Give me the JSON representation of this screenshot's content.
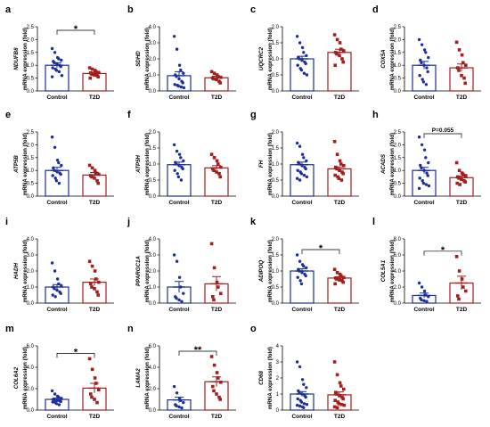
{
  "colors": {
    "control": "#1c2f9a",
    "t2d": "#a41e1e",
    "axis": "#000000"
  },
  "chart_data": [
    {
      "type": "scatter",
      "panel": "a",
      "gene": "NDUFB8",
      "ylabel_suffix": " mRNA expression (fold)",
      "ylim": [
        0,
        2.5
      ],
      "yticks": [
        "0.0",
        "0.5",
        "1.0",
        "1.5",
        "2.0",
        "2.5"
      ],
      "categories": [
        "Control",
        "T2D"
      ],
      "series": [
        {
          "name": "Control",
          "mean": 1.0,
          "sem": 0.1,
          "values": [
            1.65,
            1.5,
            1.3,
            1.25,
            1.2,
            1.15,
            1.1,
            1.05,
            1.0,
            0.95,
            0.9,
            0.85,
            0.8,
            0.75,
            0.6,
            0.55
          ]
        },
        {
          "name": "T2D",
          "mean": 0.68,
          "sem": 0.05,
          "values": [
            0.9,
            0.85,
            0.8,
            0.75,
            0.72,
            0.7,
            0.65,
            0.62,
            0.6,
            0.55,
            0.5
          ]
        }
      ],
      "annotation": "*"
    },
    {
      "type": "scatter",
      "panel": "b",
      "gene": "SDHD",
      "ylabel_suffix": " mRNA expression (fold)",
      "ylim": [
        0,
        4.0
      ],
      "yticks": [
        "0.0",
        "1.0",
        "2.0",
        "3.0",
        "4.0"
      ],
      "categories": [
        "Control",
        "T2D"
      ],
      "series": [
        {
          "name": "Control",
          "mean": 0.95,
          "sem": 0.25,
          "values": [
            3.4,
            2.6,
            1.6,
            1.3,
            1.1,
            1.0,
            0.9,
            0.75,
            0.6,
            0.5,
            0.4,
            0.35,
            0.3,
            0.25,
            0.2
          ]
        },
        {
          "name": "T2D",
          "mean": 0.82,
          "sem": 0.1,
          "values": [
            1.2,
            1.1,
            1.0,
            0.9,
            0.85,
            0.8,
            0.75,
            0.7,
            0.6,
            0.5
          ]
        }
      ],
      "annotation": ""
    },
    {
      "type": "scatter",
      "panel": "c",
      "gene": "UQCRC2",
      "ylabel_suffix": " mRNA expression (fold)",
      "ylim": [
        0,
        2.0
      ],
      "yticks": [
        "0.0",
        "0.5",
        "1.0",
        "1.5",
        "2.0"
      ],
      "categories": [
        "Control",
        "T2D"
      ],
      "series": [
        {
          "name": "Control",
          "mean": 1.0,
          "sem": 0.08,
          "values": [
            1.7,
            1.5,
            1.35,
            1.2,
            1.1,
            1.05,
            1.0,
            0.95,
            0.9,
            0.85,
            0.8,
            0.7,
            0.65,
            0.55,
            0.5
          ]
        },
        {
          "name": "T2D",
          "mean": 1.2,
          "sem": 0.1,
          "values": [
            1.75,
            1.6,
            1.5,
            1.3,
            1.25,
            1.2,
            1.15,
            1.1,
            1.0,
            0.9,
            0.8
          ]
        }
      ],
      "annotation": ""
    },
    {
      "type": "scatter",
      "panel": "d",
      "gene": "COX5A",
      "ylabel_suffix": " mRNA expression (fold)",
      "ylim": [
        0,
        2.5
      ],
      "yticks": [
        "0.0",
        "0.5",
        "1.0",
        "1.5",
        "2.0",
        "2.5"
      ],
      "categories": [
        "Control",
        "T2D"
      ],
      "series": [
        {
          "name": "Control",
          "mean": 1.0,
          "sem": 0.15,
          "values": [
            2.0,
            1.8,
            1.6,
            1.5,
            1.3,
            1.2,
            1.1,
            1.0,
            0.9,
            0.75,
            0.6,
            0.45,
            0.35,
            0.25
          ]
        },
        {
          "name": "T2D",
          "mean": 0.9,
          "sem": 0.15,
          "values": [
            1.9,
            1.6,
            1.4,
            1.1,
            1.0,
            0.9,
            0.8,
            0.6,
            0.5,
            0.3
          ]
        }
      ],
      "annotation": ""
    },
    {
      "type": "scatter",
      "panel": "e",
      "gene": "ATP5B",
      "ylabel_suffix": " mRNA expression (fold)",
      "ylim": [
        0,
        2.5
      ],
      "yticks": [
        "0.0",
        "0.5",
        "1.0",
        "1.5",
        "2.0",
        "2.5"
      ],
      "categories": [
        "Control",
        "T2D"
      ],
      "series": [
        {
          "name": "Control",
          "mean": 1.0,
          "sem": 0.12,
          "values": [
            2.3,
            1.9,
            1.4,
            1.3,
            1.2,
            1.1,
            1.0,
            0.95,
            0.9,
            0.85,
            0.8,
            0.7,
            0.6,
            0.5
          ]
        },
        {
          "name": "T2D",
          "mean": 0.82,
          "sem": 0.1,
          "values": [
            1.2,
            1.1,
            1.0,
            0.9,
            0.85,
            0.8,
            0.75,
            0.7,
            0.6,
            0.5
          ]
        }
      ],
      "annotation": ""
    },
    {
      "type": "scatter",
      "panel": "f",
      "gene": "ATP5H",
      "ylabel_suffix": " mRNA expression (fold)",
      "ylim": [
        0,
        2.0
      ],
      "yticks": [
        "0.0",
        "0.5",
        "1.0",
        "1.5",
        "2.0"
      ],
      "categories": [
        "Control",
        "T2D"
      ],
      "series": [
        {
          "name": "Control",
          "mean": 0.98,
          "sem": 0.08,
          "values": [
            1.6,
            1.4,
            1.3,
            1.2,
            1.1,
            1.05,
            1.0,
            0.95,
            0.9,
            0.85,
            0.8,
            0.7,
            0.6,
            0.5
          ]
        },
        {
          "name": "T2D",
          "mean": 0.88,
          "sem": 0.07,
          "values": [
            1.3,
            1.2,
            1.1,
            1.0,
            0.9,
            0.85,
            0.8,
            0.75,
            0.7,
            0.6
          ]
        }
      ],
      "annotation": ""
    },
    {
      "type": "scatter",
      "panel": "g",
      "gene": "FH",
      "ylabel_suffix": " mRNA expression (fold)",
      "ylim": [
        0,
        2.0
      ],
      "yticks": [
        "0.0",
        "0.5",
        "1.0",
        "1.5",
        "2.0"
      ],
      "categories": [
        "Control",
        "T2D"
      ],
      "series": [
        {
          "name": "Control",
          "mean": 0.98,
          "sem": 0.08,
          "values": [
            1.65,
            1.55,
            1.3,
            1.2,
            1.1,
            1.05,
            1.0,
            0.95,
            0.9,
            0.85,
            0.8,
            0.75,
            0.7,
            0.65,
            0.6,
            0.55,
            0.5
          ]
        },
        {
          "name": "T2D",
          "mean": 0.85,
          "sem": 0.06,
          "values": [
            1.7,
            1.3,
            1.1,
            1.0,
            0.95,
            0.9,
            0.85,
            0.8,
            0.75,
            0.7,
            0.65,
            0.6,
            0.55,
            0.5
          ]
        }
      ],
      "annotation": ""
    },
    {
      "type": "scatter",
      "panel": "h",
      "gene": "ACADS",
      "ylabel_suffix": " mRNA expression (fold)",
      "ylim": [
        0,
        2.5
      ],
      "yticks": [
        "0.0",
        "0.5",
        "1.0",
        "1.5",
        "2.0",
        "2.5"
      ],
      "categories": [
        "Control",
        "T2D"
      ],
      "series": [
        {
          "name": "Control",
          "mean": 1.0,
          "sem": 0.12,
          "values": [
            2.3,
            2.0,
            1.8,
            1.5,
            1.3,
            1.2,
            1.1,
            1.0,
            0.9,
            0.8,
            0.7,
            0.6,
            0.5,
            0.45,
            0.4,
            0.3
          ]
        },
        {
          "name": "T2D",
          "mean": 0.72,
          "sem": 0.06,
          "values": [
            1.3,
            1.0,
            0.9,
            0.85,
            0.8,
            0.75,
            0.7,
            0.65,
            0.6,
            0.55,
            0.5,
            0.45
          ]
        }
      ],
      "annotation": "P=0.055"
    },
    {
      "type": "scatter",
      "panel": "i",
      "gene": "HADH",
      "ylabel_suffix": " mRNA expression (fold)",
      "ylim": [
        0,
        4.0
      ],
      "yticks": [
        "0.0",
        "1.0",
        "2.0",
        "3.0",
        "4.0"
      ],
      "categories": [
        "Control",
        "T2D"
      ],
      "series": [
        {
          "name": "Control",
          "mean": 1.0,
          "sem": 0.15,
          "values": [
            2.5,
            2.0,
            1.5,
            1.2,
            1.1,
            1.0,
            0.9,
            0.8,
            0.7,
            0.6,
            0.5,
            0.4
          ]
        },
        {
          "name": "T2D",
          "mean": 1.3,
          "sem": 0.2,
          "values": [
            2.6,
            2.3,
            2.0,
            1.5,
            1.3,
            1.2,
            1.0,
            0.9,
            0.7,
            0.5
          ]
        }
      ],
      "annotation": ""
    },
    {
      "type": "scatter",
      "panel": "j",
      "gene": "PPARGC1A",
      "ylabel_suffix": " mRNA expression (fold)",
      "ylim": [
        0,
        4.0
      ],
      "yticks": [
        "0.0",
        "1.0",
        "2.0",
        "3.0",
        "4.0"
      ],
      "categories": [
        "Control",
        "T2D"
      ],
      "series": [
        {
          "name": "Control",
          "mean": 1.0,
          "sem": 0.35,
          "values": [
            3.0,
            2.6,
            1.6,
            1.0,
            0.6,
            0.4,
            0.3,
            0.2,
            0.1
          ]
        },
        {
          "name": "T2D",
          "mean": 1.2,
          "sem": 0.45,
          "values": [
            3.7,
            2.2,
            1.3,
            1.0,
            0.6,
            0.4,
            0.2
          ]
        }
      ],
      "annotation": ""
    },
    {
      "type": "scatter",
      "panel": "k",
      "gene": "ADIPOQ",
      "ylabel_suffix": " mRNA expression (fold)",
      "ylim": [
        0,
        2.0
      ],
      "yticks": [
        "0.0",
        "0.5",
        "1.0",
        "1.5",
        "2.0"
      ],
      "categories": [
        "Control",
        "T2D"
      ],
      "series": [
        {
          "name": "Control",
          "mean": 1.0,
          "sem": 0.07,
          "values": [
            1.5,
            1.3,
            1.2,
            1.15,
            1.1,
            1.05,
            1.0,
            0.95,
            0.9,
            0.85,
            0.8,
            0.7,
            0.6
          ]
        },
        {
          "name": "T2D",
          "mean": 0.78,
          "sem": 0.04,
          "values": [
            1.05,
            0.95,
            0.9,
            0.85,
            0.8,
            0.78,
            0.75,
            0.72,
            0.7,
            0.65,
            0.6
          ]
        }
      ],
      "annotation": "*"
    },
    {
      "type": "scatter",
      "panel": "l",
      "gene": "COL5A1",
      "ylabel_suffix": " mRNA expression (fold)",
      "ylim": [
        0,
        8.0
      ],
      "yticks": [
        "0.0",
        "2.0",
        "4.0",
        "6.0",
        "8.0"
      ],
      "categories": [
        "Control",
        "T2D"
      ],
      "series": [
        {
          "name": "Control",
          "mean": 0.95,
          "sem": 0.3,
          "values": [
            2.5,
            2.0,
            1.5,
            1.0,
            0.8,
            0.6,
            0.4,
            0.3,
            0.2
          ]
        },
        {
          "name": "T2D",
          "mean": 2.5,
          "sem": 0.85,
          "values": [
            5.8,
            4.0,
            3.0,
            2.0,
            1.5,
            0.9,
            0.5
          ]
        }
      ],
      "annotation": "*"
    },
    {
      "type": "scatter",
      "panel": "m",
      "gene": "COL6A2",
      "ylabel_suffix": " mRNA expression (fold)",
      "ylim": [
        0,
        6.0
      ],
      "yticks": [
        "0.0",
        "2.0",
        "4.0",
        "6.0"
      ],
      "categories": [
        "Control",
        "T2D"
      ],
      "series": [
        {
          "name": "Control",
          "mean": 1.0,
          "sem": 0.12,
          "values": [
            1.8,
            1.5,
            1.3,
            1.2,
            1.1,
            1.0,
            0.95,
            0.9,
            0.85,
            0.8,
            0.75,
            0.7,
            0.6,
            0.5
          ]
        },
        {
          "name": "T2D",
          "mean": 2.05,
          "sem": 0.45,
          "values": [
            4.8,
            3.8,
            3.0,
            2.5,
            1.9,
            1.5,
            1.2,
            1.0,
            0.7
          ]
        }
      ],
      "annotation": "*"
    },
    {
      "type": "scatter",
      "panel": "n",
      "gene": "LAMA2",
      "ylabel_suffix": " mRNA expression (fold)",
      "ylim": [
        0,
        6.0
      ],
      "yticks": [
        "0.0",
        "2.0",
        "4.0",
        "6.0"
      ],
      "categories": [
        "Control",
        "T2D"
      ],
      "series": [
        {
          "name": "Control",
          "mean": 0.95,
          "sem": 0.25,
          "values": [
            2.2,
            1.6,
            1.1,
            0.9,
            0.7,
            0.5,
            0.4,
            0.3,
            0.2
          ]
        },
        {
          "name": "T2D",
          "mean": 2.65,
          "sem": 0.45,
          "values": [
            5.0,
            4.2,
            3.5,
            3.0,
            2.6,
            2.2,
            1.8,
            1.5,
            1.2,
            1.0
          ]
        }
      ],
      "annotation": "**"
    },
    {
      "type": "scatter",
      "panel": "o",
      "gene": "CD68",
      "ylabel_suffix": " mRNA expression (fold)",
      "ylim": [
        0,
        4.0
      ],
      "yticks": [
        "0",
        "1",
        "2",
        "3",
        "4"
      ],
      "categories": [
        "Control",
        "T2D"
      ],
      "series": [
        {
          "name": "Control",
          "mean": 1.0,
          "sem": 0.15,
          "values": [
            3.0,
            2.7,
            1.9,
            1.6,
            1.4,
            1.2,
            1.1,
            1.0,
            0.9,
            0.8,
            0.7,
            0.6,
            0.5,
            0.4,
            0.35,
            0.3,
            0.25,
            0.2,
            0.15
          ]
        },
        {
          "name": "T2D",
          "mean": 0.95,
          "sem": 0.18,
          "values": [
            3.0,
            2.2,
            1.7,
            1.5,
            1.3,
            1.1,
            1.0,
            0.9,
            0.8,
            0.7,
            0.6,
            0.5,
            0.4,
            0.35,
            0.3,
            0.2,
            0.15
          ]
        }
      ],
      "annotation": ""
    }
  ]
}
